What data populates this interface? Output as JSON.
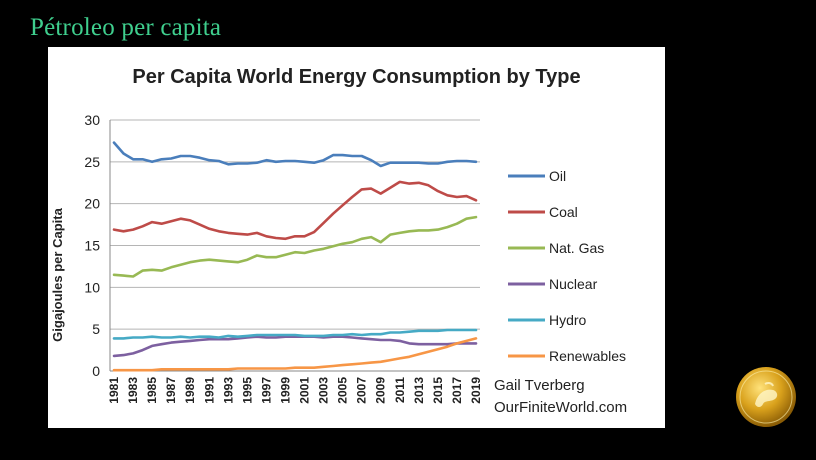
{
  "slide": {
    "title": "Pétroleo per capita"
  },
  "colors": {
    "background": "#000000",
    "slide_title": "#3fcf8e",
    "panel": "#ffffff"
  },
  "logo": {
    "icon": "gold-coin-logo"
  },
  "chart_data": {
    "type": "line",
    "title": "Per Capita World Energy Consumption by Type",
    "xlabel": "",
    "ylabel": "Gigajoules per Capita",
    "ylim": [
      0,
      30
    ],
    "yticks": [
      0,
      5,
      10,
      15,
      20,
      25,
      30
    ],
    "xticks": [
      "1981",
      "1983",
      "1985",
      "1987",
      "1989",
      "1991",
      "1993",
      "1995",
      "1997",
      "1999",
      "2001",
      "2003",
      "2005",
      "2007",
      "2009",
      "2011",
      "2013",
      "2015",
      "2017",
      "2019"
    ],
    "grid": true,
    "legend_position": "right",
    "x": [
      1981,
      1982,
      1983,
      1984,
      1985,
      1986,
      1987,
      1988,
      1989,
      1990,
      1991,
      1992,
      1993,
      1994,
      1995,
      1996,
      1997,
      1998,
      1999,
      2000,
      2001,
      2002,
      2003,
      2004,
      2005,
      2006,
      2007,
      2008,
      2009,
      2010,
      2011,
      2012,
      2013,
      2014,
      2015,
      2016,
      2017,
      2018,
      2019
    ],
    "series": [
      {
        "name": "Oil",
        "color": "#4a7ebb",
        "values": [
          27.3,
          26.0,
          25.3,
          25.3,
          25.0,
          25.3,
          25.4,
          25.7,
          25.7,
          25.5,
          25.2,
          25.1,
          24.7,
          24.8,
          24.8,
          24.9,
          25.2,
          25.0,
          25.1,
          25.1,
          25.0,
          24.9,
          25.2,
          25.8,
          25.8,
          25.7,
          25.7,
          25.2,
          24.5,
          24.9,
          24.9,
          24.9,
          24.9,
          24.8,
          24.8,
          25.0,
          25.1,
          25.1,
          25.0
        ]
      },
      {
        "name": "Coal",
        "color": "#be4b48",
        "values": [
          16.9,
          16.7,
          16.9,
          17.3,
          17.8,
          17.6,
          17.9,
          18.2,
          18.0,
          17.5,
          17.0,
          16.7,
          16.5,
          16.4,
          16.3,
          16.5,
          16.1,
          15.9,
          15.8,
          16.1,
          16.1,
          16.6,
          17.7,
          18.8,
          19.8,
          20.8,
          21.7,
          21.8,
          21.2,
          21.9,
          22.6,
          22.4,
          22.5,
          22.2,
          21.5,
          21.0,
          20.8,
          20.9,
          20.4
        ]
      },
      {
        "name": "Nat. Gas",
        "color": "#98b954",
        "values": [
          11.5,
          11.4,
          11.3,
          12.0,
          12.1,
          12.0,
          12.4,
          12.7,
          13.0,
          13.2,
          13.3,
          13.2,
          13.1,
          13.0,
          13.3,
          13.8,
          13.6,
          13.6,
          13.9,
          14.2,
          14.1,
          14.4,
          14.6,
          14.9,
          15.2,
          15.4,
          15.8,
          16.0,
          15.4,
          16.3,
          16.5,
          16.7,
          16.8,
          16.8,
          16.9,
          17.2,
          17.6,
          18.2,
          18.4
        ]
      },
      {
        "name": "Nuclear",
        "color": "#7d60a0",
        "values": [
          1.8,
          1.9,
          2.1,
          2.5,
          3.0,
          3.2,
          3.4,
          3.5,
          3.6,
          3.7,
          3.8,
          3.8,
          3.8,
          3.9,
          4.0,
          4.1,
          4.0,
          4.0,
          4.1,
          4.1,
          4.1,
          4.1,
          4.0,
          4.1,
          4.1,
          4.0,
          3.9,
          3.8,
          3.7,
          3.7,
          3.6,
          3.3,
          3.2,
          3.2,
          3.2,
          3.2,
          3.3,
          3.3,
          3.3
        ]
      },
      {
        "name": "Hydro",
        "color": "#46aac5",
        "values": [
          3.9,
          3.9,
          4.0,
          4.0,
          4.1,
          4.0,
          4.0,
          4.1,
          4.0,
          4.1,
          4.1,
          4.0,
          4.2,
          4.1,
          4.2,
          4.3,
          4.3,
          4.3,
          4.3,
          4.3,
          4.2,
          4.2,
          4.2,
          4.3,
          4.3,
          4.4,
          4.3,
          4.4,
          4.4,
          4.6,
          4.6,
          4.7,
          4.8,
          4.8,
          4.8,
          4.9,
          4.9,
          4.9,
          4.9
        ]
      },
      {
        "name": "Renewables",
        "color": "#f79646",
        "values": [
          0.1,
          0.1,
          0.1,
          0.1,
          0.1,
          0.2,
          0.2,
          0.2,
          0.2,
          0.2,
          0.2,
          0.2,
          0.2,
          0.3,
          0.3,
          0.3,
          0.3,
          0.3,
          0.3,
          0.4,
          0.4,
          0.4,
          0.5,
          0.6,
          0.7,
          0.8,
          0.9,
          1.0,
          1.1,
          1.3,
          1.5,
          1.7,
          2.0,
          2.3,
          2.6,
          2.9,
          3.3,
          3.6,
          3.9
        ]
      }
    ],
    "annotations": [
      "Gail Tverberg",
      "OurFiniteWorld.com"
    ]
  }
}
